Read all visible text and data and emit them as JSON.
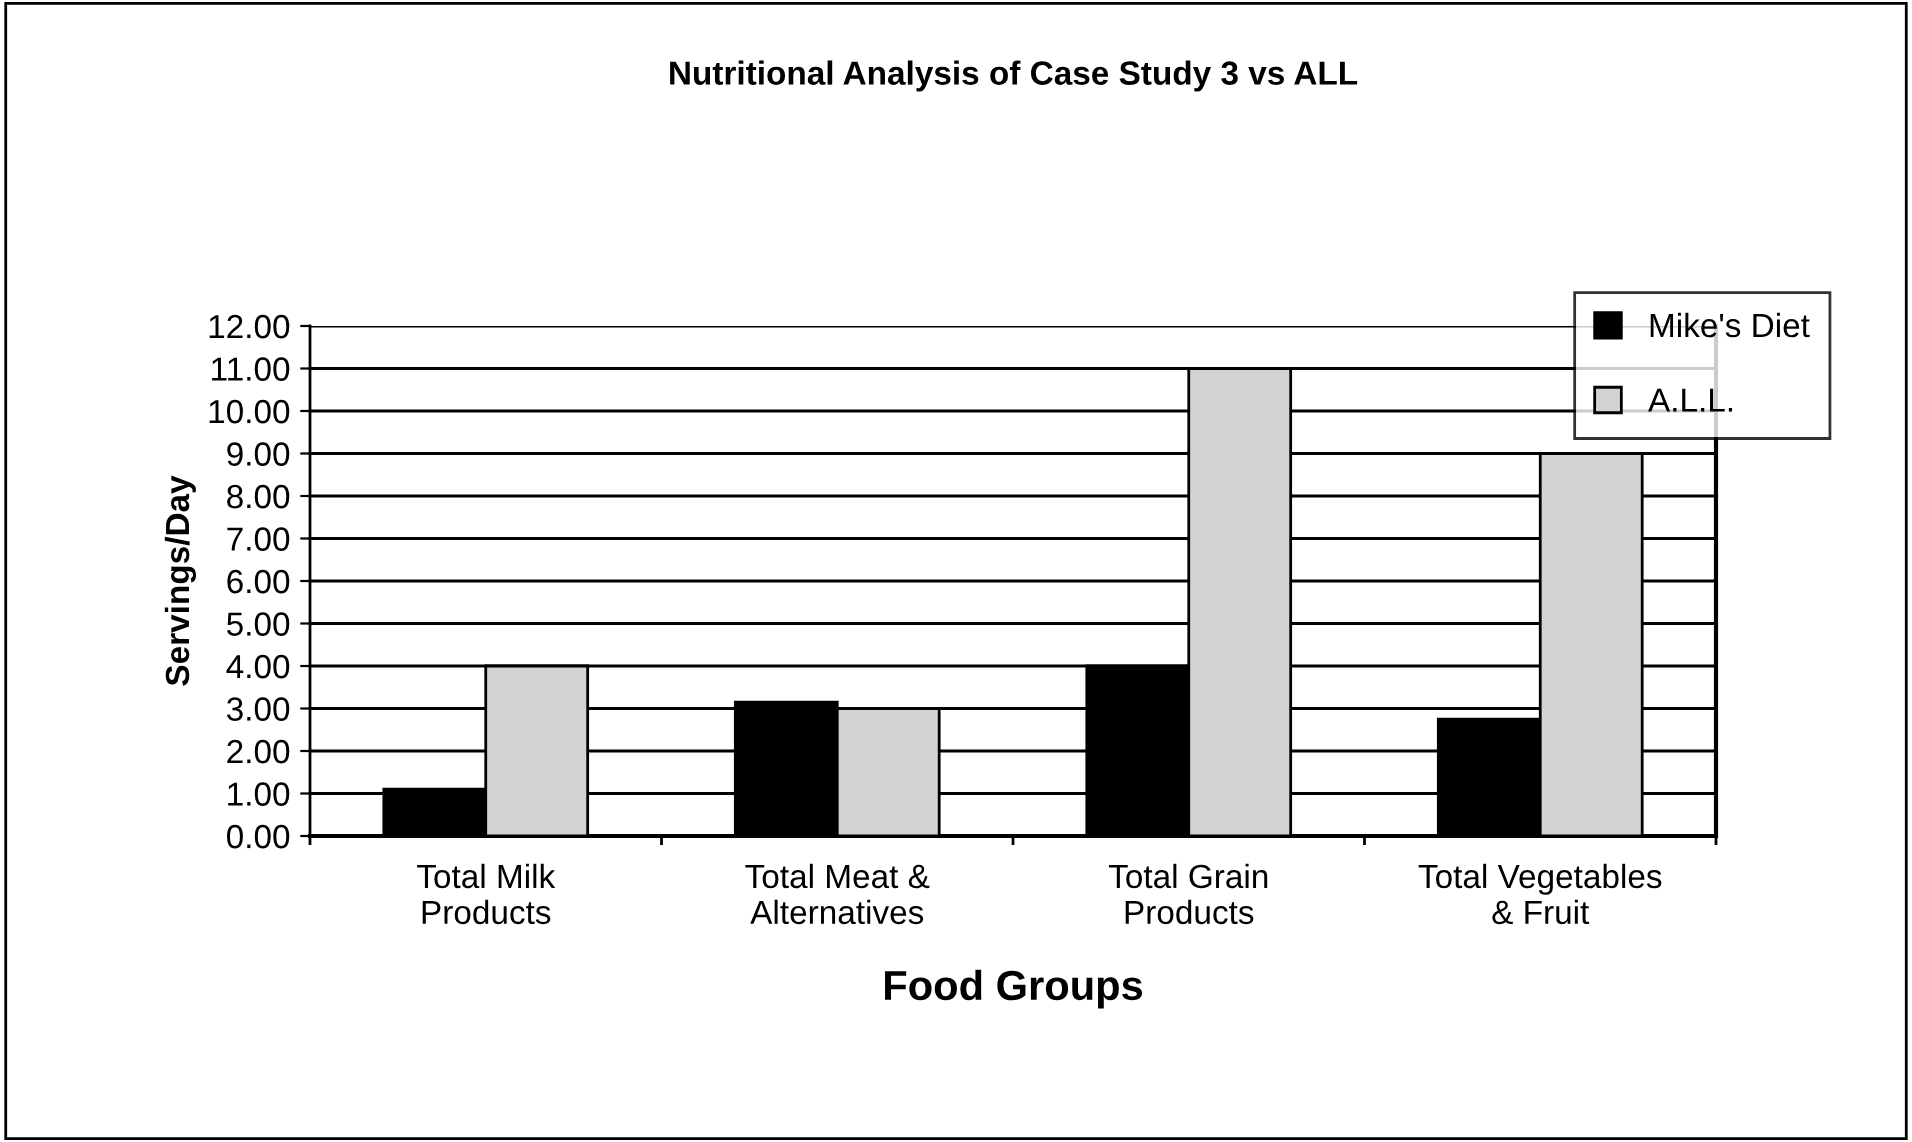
{
  "chart_data": {
    "type": "bar",
    "title": "Nutritional Analysis of Case Study 3 vs ALL",
    "xlabel": "Food Groups",
    "ylabel": "Servings/Day",
    "categories": [
      "Total Milk\nProducts",
      "Total Meat &\nAlternatives",
      "Total Grain\nProducts",
      "Total Vegetables\n& Fruit"
    ],
    "series": [
      {
        "name": "Mike's Diet",
        "color": "#000000",
        "values": [
          1.1,
          3.15,
          4.0,
          2.75
        ]
      },
      {
        "name": "A.L.L.",
        "color": "#d3d3d3",
        "values": [
          4.0,
          3.0,
          11.0,
          9.0
        ]
      }
    ],
    "ylim": [
      0,
      12
    ],
    "yticks": [
      {
        "value": 0,
        "label": "0.00"
      },
      {
        "value": 1,
        "label": "1.00"
      },
      {
        "value": 2,
        "label": "2.00"
      },
      {
        "value": 3,
        "label": "3.00"
      },
      {
        "value": 4,
        "label": "4.00"
      },
      {
        "value": 5,
        "label": "5.00"
      },
      {
        "value": 6,
        "label": "6.00"
      },
      {
        "value": 7,
        "label": "7.00"
      },
      {
        "value": 8,
        "label": "8.00"
      },
      {
        "value": 9,
        "label": "9.00"
      },
      {
        "value": 10,
        "label": "10.00"
      },
      {
        "value": 11,
        "label": "11.00"
      },
      {
        "value": 12,
        "label": "12.00"
      }
    ],
    "grid": "y",
    "legend": "top right"
  }
}
